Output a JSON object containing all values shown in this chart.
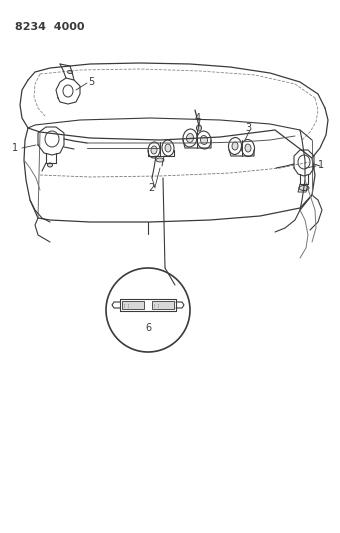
{
  "title": "8234  4000",
  "bg_color": "#ffffff",
  "line_color": "#3a3a3a",
  "label_fontsize": 7,
  "fig_width": 3.4,
  "fig_height": 5.33,
  "dpi": 100,
  "title_fontsize": 8
}
